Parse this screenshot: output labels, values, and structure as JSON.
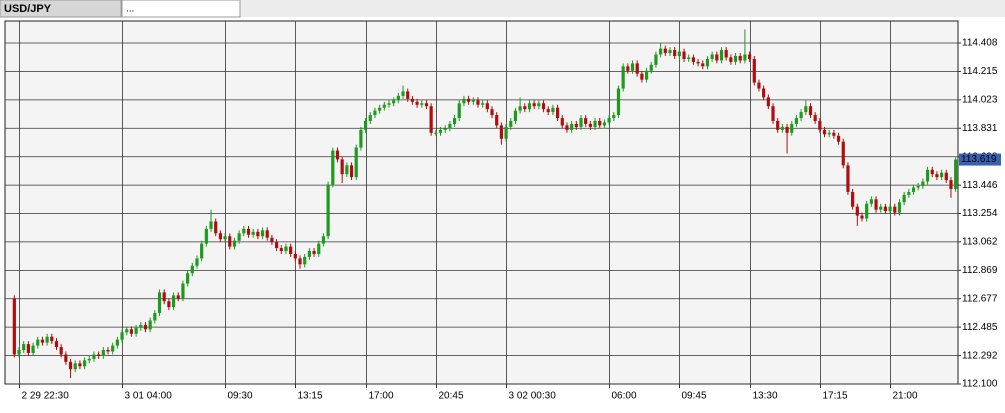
{
  "tabs": [
    "USD/JPY",
    "..."
  ],
  "chart_data": {
    "type": "candlestick",
    "up_color": "#1e9b1e",
    "down_color": "#b00e0e",
    "grid": true,
    "last_price": 113.619,
    "ylim": [
      112.1,
      114.55
    ],
    "yticks": [
      {
        "value": 114.408,
        "label": "114.408"
      },
      {
        "value": 114.215,
        "label": "114.215"
      },
      {
        "value": 114.023,
        "label": "114.023"
      },
      {
        "value": 113.831,
        "label": "113.831"
      },
      {
        "value": 113.638,
        "label": "113.638"
      },
      {
        "value": 113.446,
        "label": "113.446"
      },
      {
        "value": 113.254,
        "label": "113.254"
      },
      {
        "value": 113.062,
        "label": "113.062"
      },
      {
        "value": 112.869,
        "label": "112.869"
      },
      {
        "value": 112.677,
        "label": "112.677"
      },
      {
        "value": 112.485,
        "label": "112.485"
      },
      {
        "value": 112.292,
        "label": "112.292"
      },
      {
        "value": 112.1,
        "label": "112.100"
      }
    ],
    "categories": [
      null,
      "2 29 22:30",
      null,
      null,
      null,
      null,
      null,
      null,
      null,
      null,
      null,
      null,
      null,
      null,
      null,
      null,
      null,
      null,
      null,
      null,
      null,
      null,
      null,
      "3 01 04:00",
      null,
      null,
      null,
      null,
      null,
      null,
      null,
      null,
      null,
      null,
      null,
      null,
      null,
      null,
      null,
      null,
      null,
      null,
      null,
      null,
      null,
      "09:30",
      null,
      null,
      null,
      null,
      null,
      null,
      null,
      null,
      null,
      null,
      null,
      null,
      null,
      null,
      "13:15",
      null,
      null,
      null,
      null,
      null,
      null,
      null,
      null,
      null,
      null,
      null,
      null,
      null,
      null,
      "17:00",
      null,
      null,
      null,
      null,
      null,
      null,
      null,
      null,
      null,
      null,
      null,
      null,
      null,
      null,
      "20:45",
      null,
      null,
      null,
      null,
      null,
      null,
      null,
      null,
      null,
      null,
      null,
      null,
      null,
      null,
      "3 02 00:30",
      null,
      null,
      null,
      null,
      null,
      null,
      null,
      null,
      null,
      null,
      null,
      null,
      null,
      null,
      null,
      null,
      null,
      null,
      null,
      null,
      null,
      "06:00",
      null,
      null,
      null,
      null,
      null,
      null,
      null,
      null,
      null,
      null,
      null,
      null,
      null,
      null,
      "09:45",
      null,
      null,
      null,
      null,
      null,
      null,
      null,
      null,
      null,
      null,
      null,
      null,
      null,
      null,
      "13:30",
      null,
      null,
      null,
      null,
      null,
      null,
      null,
      null,
      null,
      null,
      null,
      null,
      null,
      null,
      "17:15",
      null,
      null,
      null,
      null,
      null,
      null,
      null,
      null,
      null,
      null,
      null,
      null,
      null,
      null,
      "21:00",
      null,
      null,
      null,
      null,
      null,
      null,
      null,
      null,
      null,
      null,
      null,
      null,
      null,
      null
    ],
    "open": [
      112.68,
      112.3,
      112.33,
      112.37,
      112.31,
      112.36,
      112.4,
      112.38,
      112.42,
      112.39,
      112.35,
      112.3,
      112.25,
      112.2,
      112.24,
      112.22,
      112.26,
      112.27,
      112.3,
      112.29,
      112.33,
      112.32,
      112.36,
      112.4,
      112.45,
      112.47,
      112.44,
      112.48,
      112.5,
      112.47,
      112.53,
      112.58,
      112.72,
      112.66,
      112.62,
      112.7,
      112.68,
      112.78,
      112.85,
      112.9,
      112.95,
      113.05,
      113.15,
      113.2,
      113.12,
      113.08,
      113.1,
      113.03,
      113.07,
      113.12,
      113.15,
      113.11,
      113.13,
      113.1,
      113.14,
      113.09,
      113.06,
      113.02,
      113.0,
      113.03,
      112.98,
      112.95,
      112.91,
      112.96,
      113.0,
      112.98,
      113.05,
      113.1,
      113.45,
      113.68,
      113.62,
      113.52,
      113.58,
      113.5,
      113.7,
      113.82,
      113.88,
      113.92,
      113.95,
      113.97,
      113.99,
      114.0,
      114.02,
      114.05,
      114.08,
      114.03,
      114.01,
      113.99,
      114.0,
      113.98,
      113.8,
      113.8,
      113.82,
      113.83,
      113.86,
      113.9,
      114.0,
      114.03,
      114.01,
      114.02,
      113.99,
      114.0,
      113.96,
      113.92,
      113.85,
      113.76,
      113.84,
      113.88,
      113.95,
      113.98,
      113.96,
      114.0,
      113.98,
      114.0,
      113.96,
      113.94,
      113.97,
      113.9,
      113.85,
      113.82,
      113.86,
      113.84,
      113.9,
      113.86,
      113.84,
      113.88,
      113.85,
      113.87,
      113.9,
      113.92,
      114.1,
      114.25,
      114.22,
      114.27,
      114.2,
      114.16,
      114.22,
      114.26,
      114.33,
      114.37,
      114.34,
      114.36,
      114.32,
      114.35,
      114.3,
      114.31,
      114.28,
      114.27,
      114.25,
      114.3,
      114.33,
      114.29,
      114.36,
      114.31,
      114.28,
      114.32,
      114.29,
      114.33,
      114.3,
      114.14,
      114.1,
      114.04,
      113.98,
      113.88,
      113.82,
      113.84,
      113.8,
      113.86,
      113.9,
      113.94,
      113.98,
      113.92,
      113.88,
      113.82,
      113.79,
      113.8,
      113.78,
      113.74,
      113.58,
      113.4,
      113.3,
      113.24,
      113.22,
      113.32,
      113.35,
      113.28,
      113.3,
      113.27,
      113.3,
      113.26,
      113.33,
      113.38,
      113.4,
      113.43,
      113.44,
      113.47,
      113.55,
      113.52,
      113.5,
      113.53,
      113.48,
      113.42
    ],
    "high": [
      112.7,
      112.35,
      112.39,
      112.39,
      112.38,
      112.42,
      112.42,
      112.44,
      112.44,
      112.41,
      112.37,
      112.32,
      112.27,
      112.26,
      112.26,
      112.28,
      112.29,
      112.32,
      112.32,
      112.35,
      112.35,
      112.38,
      112.42,
      112.47,
      112.49,
      112.49,
      112.5,
      112.52,
      112.52,
      112.55,
      112.6,
      112.74,
      112.74,
      112.68,
      112.72,
      112.72,
      112.8,
      112.87,
      112.92,
      112.97,
      113.07,
      113.17,
      113.28,
      113.22,
      113.14,
      113.12,
      113.12,
      113.09,
      113.14,
      113.17,
      113.17,
      113.15,
      113.15,
      113.16,
      113.16,
      113.11,
      113.08,
      113.04,
      113.05,
      113.05,
      113.0,
      112.97,
      112.98,
      113.02,
      113.02,
      113.07,
      113.12,
      113.47,
      113.7,
      113.7,
      113.64,
      113.6,
      113.6,
      113.72,
      113.84,
      113.9,
      113.94,
      113.97,
      113.99,
      114.01,
      114.02,
      114.04,
      114.07,
      114.12,
      114.1,
      114.05,
      114.03,
      114.02,
      114.02,
      114.0,
      113.82,
      113.84,
      113.85,
      113.88,
      113.92,
      114.02,
      114.05,
      114.05,
      114.04,
      114.04,
      114.02,
      114.02,
      113.98,
      113.94,
      113.87,
      113.86,
      113.9,
      113.97,
      114.04,
      114.0,
      114.02,
      114.02,
      114.02,
      114.02,
      113.98,
      113.99,
      113.99,
      113.92,
      113.87,
      113.88,
      113.88,
      113.92,
      113.92,
      113.88,
      113.9,
      113.9,
      113.89,
      113.92,
      113.94,
      114.12,
      114.27,
      114.27,
      114.29,
      114.29,
      114.22,
      114.24,
      114.28,
      114.35,
      114.41,
      114.39,
      114.38,
      114.38,
      114.37,
      114.37,
      114.33,
      114.33,
      114.3,
      114.29,
      114.32,
      114.35,
      114.35,
      114.38,
      114.38,
      114.33,
      114.34,
      114.34,
      114.5,
      114.35,
      114.32,
      114.16,
      114.12,
      114.06,
      114.0,
      113.9,
      113.86,
      113.86,
      113.88,
      113.92,
      113.96,
      114.02,
      114.0,
      113.94,
      113.9,
      113.84,
      113.82,
      113.82,
      113.8,
      113.76,
      113.6,
      113.42,
      113.32,
      113.26,
      113.34,
      113.37,
      113.37,
      113.32,
      113.32,
      113.32,
      113.32,
      113.35,
      113.4,
      113.42,
      113.45,
      113.46,
      113.49,
      113.57,
      113.57,
      113.54,
      113.55,
      113.55,
      113.5,
      113.64
    ],
    "low": [
      112.28,
      112.28,
      112.31,
      112.29,
      112.29,
      112.34,
      112.36,
      112.36,
      112.37,
      112.33,
      112.28,
      112.23,
      112.14,
      112.18,
      112.2,
      112.2,
      112.24,
      112.25,
      112.27,
      112.27,
      112.3,
      112.3,
      112.34,
      112.38,
      112.43,
      112.42,
      112.42,
      112.46,
      112.45,
      112.45,
      112.51,
      112.56,
      112.64,
      112.6,
      112.6,
      112.66,
      112.66,
      112.76,
      112.83,
      112.88,
      112.93,
      113.03,
      113.13,
      113.1,
      113.06,
      113.06,
      113.01,
      113.01,
      113.05,
      113.1,
      113.09,
      113.09,
      113.08,
      113.08,
      113.07,
      113.04,
      113.0,
      112.98,
      112.98,
      112.96,
      112.93,
      112.88,
      112.89,
      112.94,
      112.96,
      112.96,
      113.03,
      113.08,
      113.43,
      113.6,
      113.46,
      113.5,
      113.48,
      113.48,
      113.68,
      113.8,
      113.86,
      113.9,
      113.93,
      113.95,
      113.97,
      113.98,
      114.0,
      114.03,
      114.01,
      113.99,
      113.97,
      113.97,
      113.96,
      113.78,
      113.78,
      113.78,
      113.8,
      113.81,
      113.84,
      113.88,
      113.98,
      113.99,
      113.99,
      113.97,
      113.97,
      113.94,
      113.9,
      113.83,
      113.72,
      113.74,
      113.82,
      113.86,
      113.93,
      113.94,
      113.94,
      113.96,
      113.96,
      113.94,
      113.92,
      113.92,
      113.88,
      113.83,
      113.8,
      113.8,
      113.82,
      113.82,
      113.84,
      113.82,
      113.82,
      113.83,
      113.83,
      113.85,
      113.88,
      113.9,
      114.08,
      114.2,
      114.2,
      114.18,
      114.14,
      114.14,
      114.2,
      114.24,
      114.31,
      114.32,
      114.32,
      114.3,
      114.3,
      114.28,
      114.28,
      114.26,
      114.25,
      114.23,
      114.23,
      114.28,
      114.27,
      114.27,
      114.29,
      114.26,
      114.26,
      114.27,
      114.27,
      114.28,
      114.12,
      114.08,
      114.02,
      113.96,
      113.86,
      113.8,
      113.8,
      113.66,
      113.78,
      113.84,
      113.88,
      113.92,
      113.9,
      113.86,
      113.8,
      113.77,
      113.77,
      113.76,
      113.72,
      113.56,
      113.38,
      113.28,
      113.17,
      113.2,
      113.2,
      113.3,
      113.26,
      113.26,
      113.25,
      113.25,
      113.24,
      113.24,
      113.31,
      113.36,
      113.38,
      113.41,
      113.42,
      113.45,
      113.5,
      113.48,
      113.48,
      113.46,
      113.36,
      113.4
    ],
    "close": [
      112.3,
      112.33,
      112.37,
      112.31,
      112.36,
      112.4,
      112.38,
      112.42,
      112.39,
      112.35,
      112.3,
      112.25,
      112.2,
      112.24,
      112.22,
      112.26,
      112.27,
      112.3,
      112.29,
      112.33,
      112.32,
      112.36,
      112.4,
      112.45,
      112.47,
      112.44,
      112.48,
      112.5,
      112.47,
      112.53,
      112.58,
      112.72,
      112.66,
      112.62,
      112.7,
      112.68,
      112.78,
      112.85,
      112.9,
      112.95,
      113.05,
      113.15,
      113.2,
      113.12,
      113.08,
      113.1,
      113.03,
      113.07,
      113.12,
      113.15,
      113.11,
      113.13,
      113.1,
      113.14,
      113.09,
      113.06,
      113.02,
      113.0,
      113.03,
      112.98,
      112.95,
      112.91,
      112.96,
      113.0,
      112.98,
      113.05,
      113.1,
      113.45,
      113.68,
      113.62,
      113.52,
      113.58,
      113.5,
      113.7,
      113.82,
      113.88,
      113.92,
      113.95,
      113.97,
      113.99,
      114.0,
      114.02,
      114.05,
      114.08,
      114.03,
      114.01,
      113.99,
      114.0,
      113.98,
      113.8,
      113.8,
      113.82,
      113.83,
      113.86,
      113.9,
      114.0,
      114.03,
      114.01,
      114.02,
      113.99,
      114.0,
      113.96,
      113.92,
      113.85,
      113.76,
      113.84,
      113.88,
      113.95,
      113.98,
      113.96,
      114.0,
      113.98,
      114.0,
      113.96,
      113.94,
      113.97,
      113.9,
      113.85,
      113.82,
      113.86,
      113.84,
      113.9,
      113.86,
      113.84,
      113.88,
      113.85,
      113.87,
      113.9,
      113.92,
      114.1,
      114.25,
      114.22,
      114.27,
      114.2,
      114.16,
      114.22,
      114.26,
      114.33,
      114.37,
      114.34,
      114.36,
      114.32,
      114.35,
      114.3,
      114.31,
      114.28,
      114.27,
      114.25,
      114.3,
      114.33,
      114.29,
      114.36,
      114.31,
      114.28,
      114.32,
      114.29,
      114.33,
      114.3,
      114.14,
      114.1,
      114.04,
      113.98,
      113.88,
      113.82,
      113.84,
      113.8,
      113.86,
      113.9,
      113.94,
      113.98,
      113.92,
      113.88,
      113.82,
      113.79,
      113.8,
      113.78,
      113.74,
      113.58,
      113.4,
      113.3,
      113.24,
      113.22,
      113.32,
      113.35,
      113.28,
      113.3,
      113.27,
      113.3,
      113.26,
      113.33,
      113.38,
      113.4,
      113.43,
      113.44,
      113.47,
      113.55,
      113.52,
      113.5,
      113.53,
      113.48,
      113.42,
      113.619
    ]
  }
}
